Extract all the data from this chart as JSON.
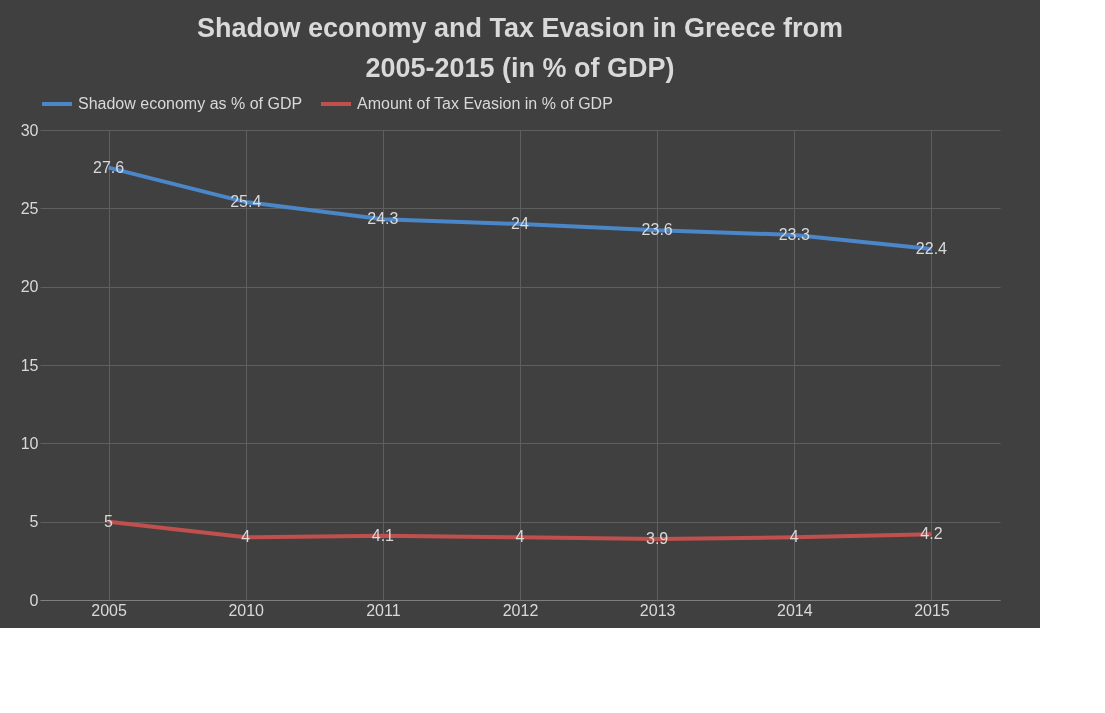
{
  "chart_data": {
    "type": "line",
    "title": "Shadow economy and Tax Evasion in Greece from 2005-2015 (in % of GDP)",
    "categories": [
      "2005",
      "2010",
      "2011",
      "2012",
      "2013",
      "2014",
      "2015"
    ],
    "series": [
      {
        "name": "Shadow economy as % of GDP",
        "color": "#4a86c8",
        "values": [
          27.6,
          25.4,
          24.3,
          24,
          23.6,
          23.3,
          22.4
        ]
      },
      {
        "name": "Amount of Tax Evasion in % of GDP",
        "color": "#c0504d",
        "values": [
          5,
          4,
          4.1,
          4,
          3.9,
          4,
          4.2
        ]
      }
    ],
    "ylim": [
      0,
      30
    ],
    "yticks": [
      0,
      5,
      10,
      15,
      20,
      25,
      30
    ],
    "grid": true,
    "legend": "top",
    "data_labels": true,
    "line_style": "solid"
  }
}
